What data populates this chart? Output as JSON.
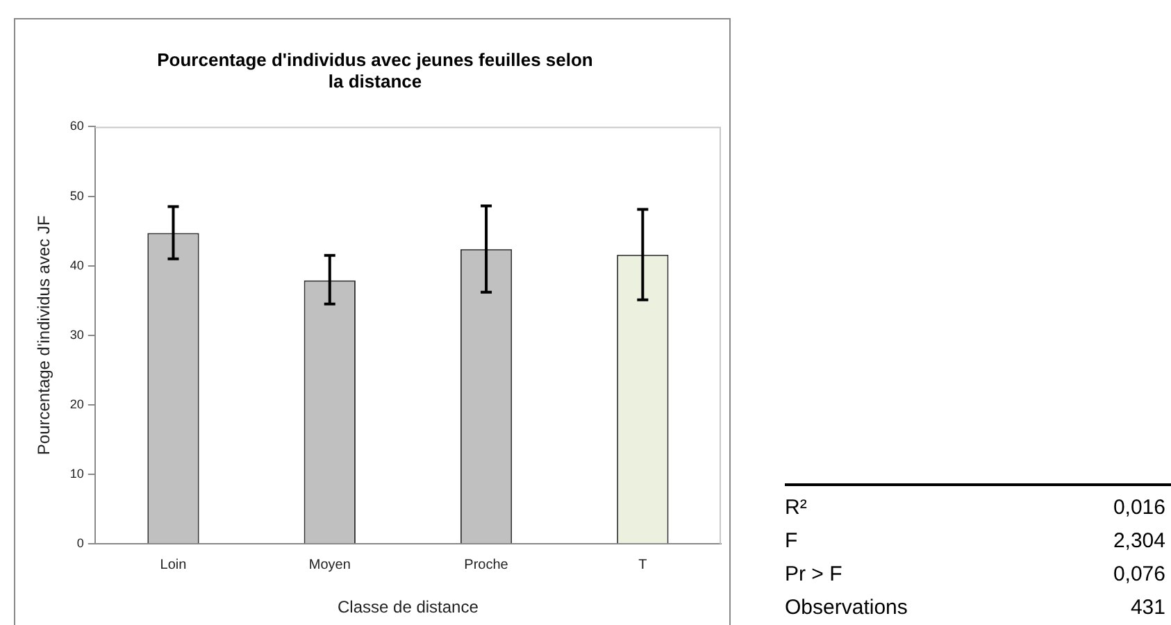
{
  "chart_data": [
    {
      "type": "bar",
      "title": "Pourcentage d'individus avec jeunes feuilles selon la distance",
      "xlabel": "Classe de distance",
      "ylabel": "Pourcentage d'individus avec JF",
      "categories": [
        "Loin",
        "Moyen",
        "Proche",
        "T"
      ],
      "values": [
        44.7,
        37.9,
        42.4,
        41.6
      ],
      "colors": [
        "#c0c0c0",
        "#c0c0c0",
        "#c0c0c0",
        "#ebf1de"
      ],
      "errors": [
        [
          41.0,
          48.5
        ],
        [
          34.5,
          41.5
        ],
        [
          36.2,
          48.6
        ],
        [
          35.1,
          48.1
        ]
      ],
      "ylim": [
        0,
        60
      ],
      "yticks": [
        0,
        10,
        20,
        30,
        40,
        50,
        60
      ]
    },
    {
      "type": "other",
      "annotations": [
        "R²",
        "0,016",
        "F",
        "2,304",
        "Pr > F",
        "0,076",
        "Observations",
        "431"
      ]
    }
  ]
}
